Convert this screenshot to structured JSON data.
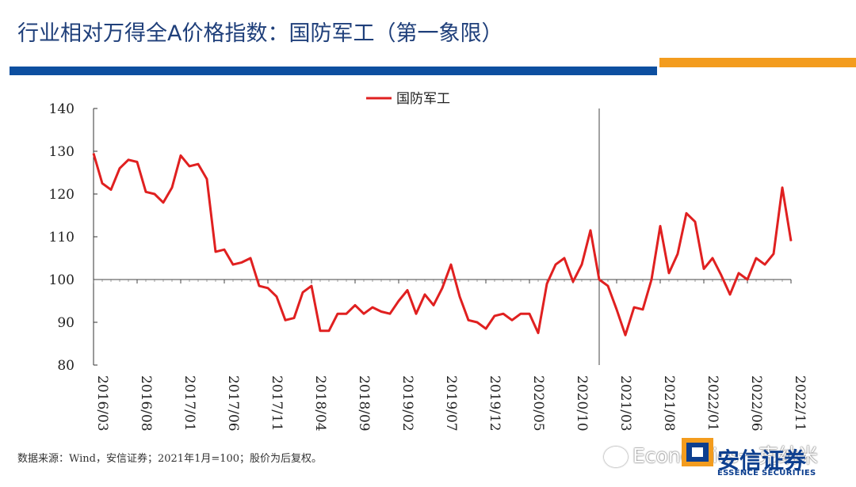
{
  "header": {
    "title": "行业相对万得全A价格指数：国防军工（第一象限）"
  },
  "colors": {
    "brand_blue": "#0d4fa0",
    "accent_orange": "#f39c1e",
    "series_red": "#e02020"
  },
  "chart_data": {
    "type": "line",
    "title": "",
    "xlabel": "",
    "ylabel": "",
    "ylim": [
      80,
      140
    ],
    "yticks": [
      80,
      90,
      100,
      110,
      120,
      130,
      140
    ],
    "xtick_labels": [
      "2016/03",
      "2016/08",
      "2017/01",
      "2017/06",
      "2017/11",
      "2018/04",
      "2018/09",
      "2019/02",
      "2019/07",
      "2019/12",
      "2020/05",
      "2020/10",
      "2021/03",
      "2021/08",
      "2022/01",
      "2022/06",
      "2022/11"
    ],
    "reference_line_y": 100,
    "vertical_marker": "2021/01",
    "legend": "top-center",
    "series": [
      {
        "name": "国防军工",
        "color": "#e02020",
        "values": [
          129.5,
          122.5,
          121,
          126,
          128,
          127.5,
          120.5,
          120,
          118,
          121.5,
          129,
          126.5,
          127,
          123.5,
          106.5,
          107,
          103.5,
          104,
          105,
          98.5,
          98,
          96,
          90.5,
          91,
          97,
          98.5,
          88,
          88,
          92,
          92,
          94,
          92,
          93.5,
          92.5,
          92,
          95,
          97.5,
          92,
          96.5,
          94,
          98,
          103.5,
          96,
          90.5,
          90,
          88.5,
          91.5,
          92,
          90.5,
          92,
          92,
          87.5,
          99,
          103.5,
          105,
          99.5,
          103.5,
          111.5,
          100,
          98.5,
          93,
          87,
          93.5,
          93,
          100,
          112.5,
          101.5,
          106,
          115.5,
          113.5,
          102.5,
          105,
          101,
          96.5,
          101.5,
          100,
          105,
          103.5,
          106,
          121.5,
          109
        ]
      }
    ]
  },
  "footer": {
    "source": "数据来源：Wind，安信证券；2021年1月=100；股价为后复权。",
    "watermark": "Economics一克纳米",
    "logo_cn": "安信证券",
    "logo_en": "ESSENCE SECURITIES"
  }
}
